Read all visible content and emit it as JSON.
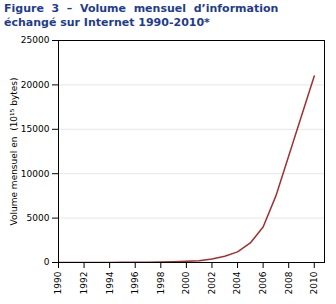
{
  "chart_data": {
    "type": "line",
    "title": "Figure  3  –  Volume  mensuel  d’information",
    "subtitle": "échangé sur Internet 1990-2010*",
    "title_color": "#1f3d8c",
    "ylabel": "Volume mensuel en  (10¹⁵ bytes)",
    "x": [
      1990,
      1991,
      1992,
      1993,
      1994,
      1995,
      1996,
      1997,
      1998,
      1999,
      2000,
      2001,
      2002,
      2003,
      2004,
      2005,
      2006,
      2007,
      2008,
      2009,
      2010
    ],
    "values": [
      0.5,
      1,
      2,
      4,
      8,
      15,
      25,
      40,
      60,
      90,
      130,
      200,
      400,
      700,
      1200,
      2200,
      4000,
      7500,
      12000,
      16500,
      21000
    ],
    "color": "#a03030",
    "xlim": [
      1990,
      2010.8
    ],
    "xticks": [
      1990,
      1992,
      1994,
      1996,
      1998,
      2000,
      2002,
      2004,
      2006,
      2008,
      2010
    ],
    "ylim": [
      0,
      25000
    ],
    "yticks": [
      0,
      5000,
      10000,
      15000,
      20000,
      25000
    ],
    "grid": true
  }
}
